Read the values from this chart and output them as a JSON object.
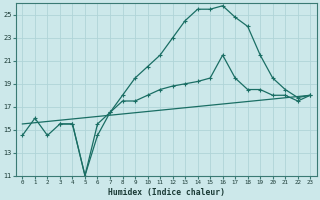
{
  "title": "",
  "xlabel": "Humidex (Indice chaleur)",
  "ylabel": "",
  "bg_color": "#cce8ea",
  "grid_color": "#b0d4d8",
  "line_color": "#1a6e64",
  "ylim": [
    11,
    26
  ],
  "xlim": [
    -0.5,
    23.5
  ],
  "yticks": [
    11,
    13,
    15,
    17,
    19,
    21,
    23,
    25
  ],
  "xticks": [
    0,
    1,
    2,
    3,
    4,
    5,
    6,
    7,
    8,
    9,
    10,
    11,
    12,
    13,
    14,
    15,
    16,
    17,
    18,
    19,
    20,
    21,
    22,
    23
  ],
  "series1_x": [
    0,
    1,
    2,
    3,
    4,
    5,
    6,
    7,
    8,
    9,
    10,
    11,
    12,
    13,
    14,
    15,
    16,
    17,
    18,
    19,
    20,
    21,
    22,
    23
  ],
  "series1_y": [
    14.5,
    16.0,
    14.5,
    15.5,
    15.5,
    11.0,
    14.5,
    16.5,
    18.0,
    19.5,
    20.5,
    21.5,
    23.0,
    24.5,
    25.5,
    25.5,
    25.8,
    24.8,
    24.0,
    21.5,
    19.5,
    18.5,
    17.8,
    18.0
  ],
  "series2_x": [
    3,
    4,
    5,
    6,
    7,
    8,
    9,
    10,
    11,
    12,
    13,
    14,
    15,
    16,
    17,
    18,
    19,
    20,
    21,
    22,
    23
  ],
  "series2_y": [
    15.5,
    15.5,
    11.0,
    15.5,
    16.5,
    17.5,
    17.5,
    18.0,
    18.5,
    18.8,
    19.0,
    19.2,
    19.5,
    21.5,
    19.5,
    18.5,
    18.5,
    18.0,
    18.0,
    17.5,
    18.0
  ],
  "series3_x": [
    0,
    23
  ],
  "series3_y": [
    15.5,
    18.0
  ]
}
